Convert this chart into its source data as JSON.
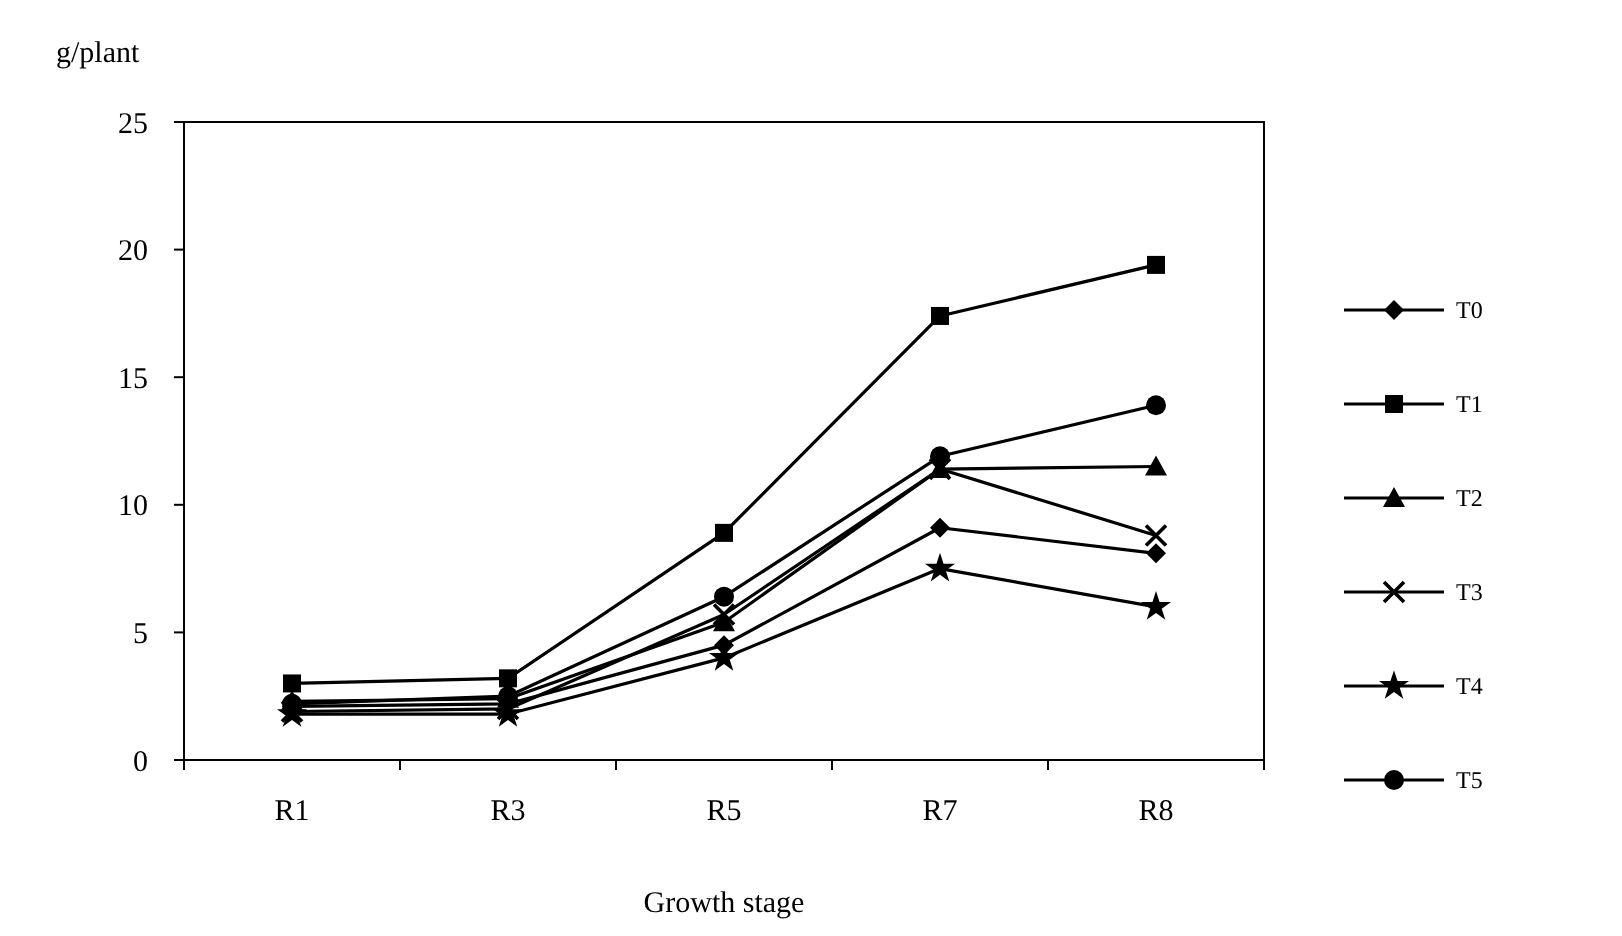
{
  "chart_data": {
    "type": "line",
    "ylabel": "g/plant",
    "xlabel": "Growth stage",
    "categories": [
      "R1",
      "R3",
      "R5",
      "R7",
      "R8"
    ],
    "ylim": [
      0,
      25
    ],
    "yticks": [
      0,
      5,
      10,
      15,
      20,
      25
    ],
    "grid": false,
    "legend": "right",
    "series": [
      {
        "name": "T0",
        "color": "#000000",
        "marker": "diamond",
        "values": [
          2.1,
          2.2,
          4.5,
          9.1,
          8.1
        ]
      },
      {
        "name": "T1",
        "color": "#000000",
        "marker": "square",
        "values": [
          3.0,
          3.2,
          8.9,
          17.4,
          19.4
        ]
      },
      {
        "name": "T2",
        "color": "#000000",
        "marker": "triangle",
        "values": [
          2.3,
          2.4,
          5.4,
          11.4,
          11.5
        ]
      },
      {
        "name": "T3",
        "color": "#000000",
        "marker": "cross",
        "values": [
          1.9,
          2.0,
          5.7,
          11.4,
          8.8
        ]
      },
      {
        "name": "T4",
        "color": "#000000",
        "marker": "star",
        "values": [
          1.8,
          1.8,
          4.0,
          7.5,
          6.0
        ]
      },
      {
        "name": "T5",
        "color": "#000000",
        "marker": "circle",
        "values": [
          2.2,
          2.5,
          6.4,
          11.9,
          13.9
        ]
      }
    ]
  }
}
